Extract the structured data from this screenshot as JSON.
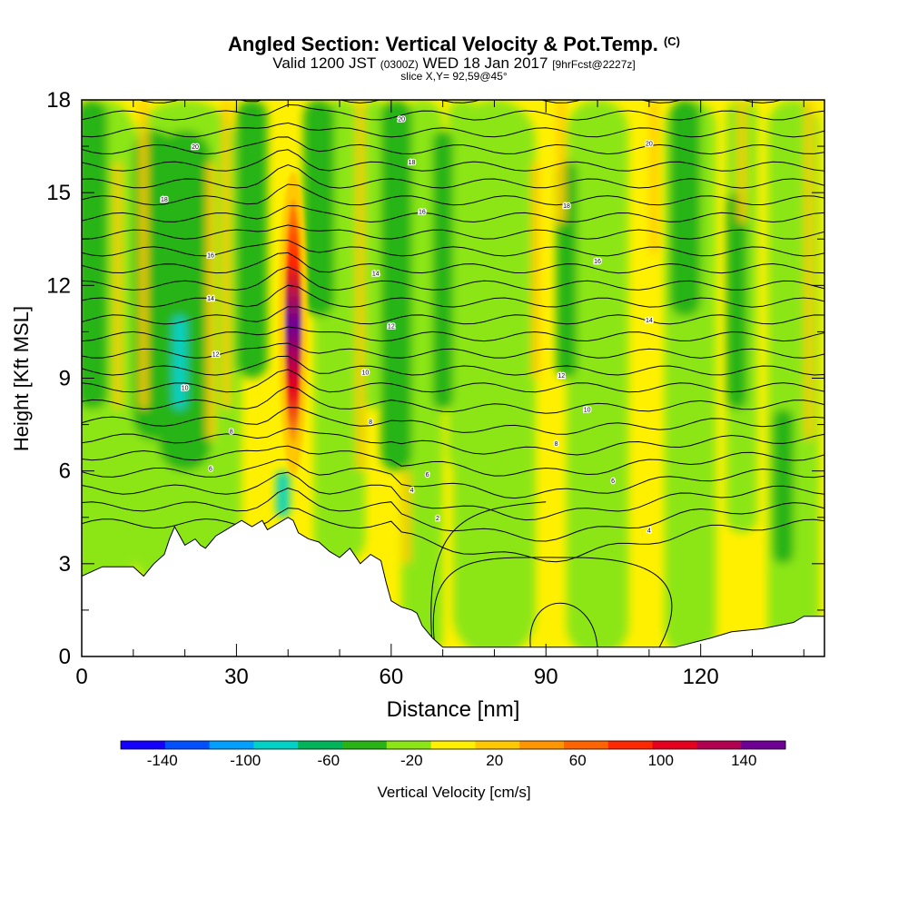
{
  "header": {
    "title": "Angled Section: Vertical Velocity & Pot.Temp.",
    "title_tag": "(C)",
    "subtitle_main": "Valid 1200 JST",
    "subtitle_utc": "(0300Z)",
    "subtitle_date": "WED 18 Jan 2017",
    "subtitle_fcst": "[9hrFcst@2227z]",
    "slice": "slice X,Y= 92,59@45°"
  },
  "chart_data": {
    "type": "heatmap",
    "title": "Angled Section: Vertical Velocity & Pot.Temp.",
    "xlabel": "Distance [nm]",
    "ylabel": "Height [Kft MSL]",
    "xlim": [
      0,
      144
    ],
    "ylim": [
      0,
      18
    ],
    "x_ticks": [
      "0",
      "30",
      "60",
      "90",
      "120"
    ],
    "y_ticks": [
      "0",
      "3",
      "6",
      "9",
      "12",
      "15",
      "18"
    ],
    "colorbar": {
      "label": "Vertical Velocity [cm/s]",
      "tick_labels": [
        "-140",
        "-100",
        "-60",
        "-20",
        "20",
        "60",
        "100",
        "140"
      ],
      "bounds": [
        -160,
        160
      ],
      "colors": [
        "#1400ff",
        "#0050ff",
        "#00a0ff",
        "#00d2c8",
        "#00b45a",
        "#28b414",
        "#8ce614",
        "#fff000",
        "#ffc800",
        "#ff9600",
        "#ff6400",
        "#ff2800",
        "#e6001e",
        "#b40050",
        "#6e0096"
      ]
    },
    "terrain_kft": [
      [
        0,
        2.6
      ],
      [
        4,
        2.9
      ],
      [
        10,
        2.9
      ],
      [
        12,
        2.6
      ],
      [
        14,
        3.0
      ],
      [
        16,
        3.3
      ],
      [
        17,
        3.8
      ],
      [
        18,
        4.2
      ],
      [
        20,
        3.6
      ],
      [
        21,
        3.7
      ],
      [
        22,
        3.8
      ],
      [
        23,
        3.6
      ],
      [
        24,
        3.5
      ],
      [
        25,
        3.7
      ],
      [
        26,
        3.9
      ],
      [
        28,
        4.1
      ],
      [
        30,
        4.3
      ],
      [
        31,
        4.4
      ],
      [
        33,
        4.2
      ],
      [
        35,
        4.4
      ],
      [
        36,
        4.1
      ],
      [
        38,
        4.3
      ],
      [
        40,
        4.5
      ],
      [
        41,
        4.4
      ],
      [
        42,
        4.0
      ],
      [
        44,
        3.8
      ],
      [
        46,
        3.7
      ],
      [
        48,
        3.4
      ],
      [
        50,
        3.2
      ],
      [
        52,
        3.5
      ],
      [
        54,
        3.0
      ],
      [
        56,
        3.3
      ],
      [
        58,
        3.1
      ],
      [
        59,
        2.4
      ],
      [
        60,
        1.8
      ],
      [
        62,
        1.6
      ],
      [
        64,
        1.5
      ],
      [
        65,
        1.4
      ],
      [
        66,
        1.0
      ],
      [
        68,
        0.6
      ],
      [
        70,
        0.3
      ],
      [
        80,
        0.3
      ],
      [
        100,
        0.3
      ],
      [
        115,
        0.3
      ],
      [
        122,
        0.6
      ],
      [
        126,
        0.8
      ],
      [
        132,
        0.9
      ],
      [
        138,
        1.1
      ],
      [
        140,
        1.3
      ],
      [
        144,
        1.3
      ]
    ],
    "updraft_max": {
      "x": 41,
      "y_min": 7,
      "y_max": 14.5,
      "value": 140
    },
    "theta_contour_labels": [
      {
        "text": "20",
        "x": 22,
        "y": 16.5
      },
      {
        "text": "18",
        "x": 16,
        "y": 14.8
      },
      {
        "text": "16",
        "x": 25,
        "y": 13.0
      },
      {
        "text": "14",
        "x": 25,
        "y": 11.6
      },
      {
        "text": "12",
        "x": 26,
        "y": 9.8
      },
      {
        "text": "10",
        "x": 20,
        "y": 8.7
      },
      {
        "text": "8",
        "x": 29,
        "y": 7.3
      },
      {
        "text": "6",
        "x": 25,
        "y": 6.1
      },
      {
        "text": "20",
        "x": 62,
        "y": 17.4
      },
      {
        "text": "18",
        "x": 64,
        "y": 16.0
      },
      {
        "text": "16",
        "x": 66,
        "y": 14.4
      },
      {
        "text": "14",
        "x": 57,
        "y": 12.4
      },
      {
        "text": "12",
        "x": 60,
        "y": 10.7
      },
      {
        "text": "10",
        "x": 55,
        "y": 9.2
      },
      {
        "text": "8",
        "x": 56,
        "y": 7.6
      },
      {
        "text": "6",
        "x": 67,
        "y": 5.9
      },
      {
        "text": "4",
        "x": 64,
        "y": 5.4
      },
      {
        "text": "2",
        "x": 69,
        "y": 4.5
      },
      {
        "text": "20",
        "x": 110,
        "y": 16.6
      },
      {
        "text": "18",
        "x": 94,
        "y": 14.6
      },
      {
        "text": "16",
        "x": 100,
        "y": 12.8
      },
      {
        "text": "14",
        "x": 110,
        "y": 10.9
      },
      {
        "text": "12",
        "x": 93,
        "y": 9.1
      },
      {
        "text": "10",
        "x": 98,
        "y": 8.0
      },
      {
        "text": "8",
        "x": 92,
        "y": 6.9
      },
      {
        "text": "6",
        "x": 103,
        "y": 5.7
      },
      {
        "text": "4",
        "x": 110,
        "y": 4.1
      }
    ]
  }
}
